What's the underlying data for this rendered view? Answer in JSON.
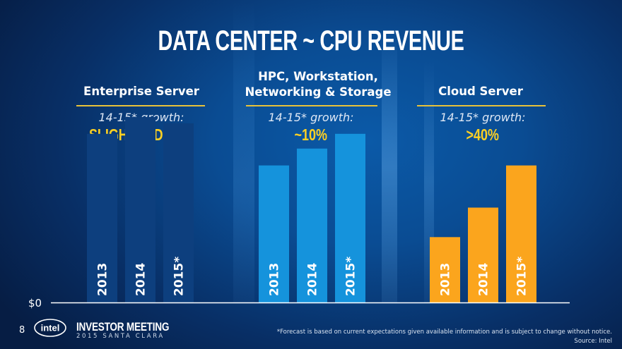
{
  "title": "DATA CENTER ~ CPU REVENUE",
  "growth_label": "14-15* growth:",
  "segments": [
    {
      "name": "Enterprise Server",
      "name_lines": [
        "Enterprise Server"
      ],
      "growth": "SLIGHTLY DOWN"
    },
    {
      "name": "HPC, Workstation, Networking & Storage",
      "name_lines": [
        "HPC, Workstation,",
        "Networking & Storage"
      ],
      "growth": "~10%"
    },
    {
      "name": "Cloud Server",
      "name_lines": [
        "Cloud Server"
      ],
      "growth": ">40%"
    }
  ],
  "colors": {
    "enterprise": "#0d3f7e",
    "hpc": "#1593dc",
    "cloud": "#fba51d",
    "accent": "#fdd023"
  },
  "chart_data": {
    "type": "bar",
    "title": "DATA CENTER ~ CPU REVENUE",
    "ylabel": "",
    "y_tick_label": "$0",
    "ylim": [
      0,
      100
    ],
    "units": "relative (no scale shown)",
    "series": [
      {
        "name": "Enterprise Server",
        "categories": [
          "2013",
          "2014",
          "2015*"
        ],
        "values": [
          80,
          88,
          85
        ]
      },
      {
        "name": "HPC, Workstation, Networking & Storage",
        "categories": [
          "2013",
          "2014",
          "2015*"
        ],
        "values": [
          65,
          73,
          80
        ]
      },
      {
        "name": "Cloud Server",
        "categories": [
          "2013",
          "2014",
          "2015*"
        ],
        "values": [
          31,
          45,
          65
        ]
      }
    ]
  },
  "footer": {
    "page_number": "8",
    "brand": "intel",
    "event_title": "INVESTOR MEETING",
    "event_subtitle": "2015 SANTA CLARA",
    "footnote": "*Forecast is based on current expectations given available information and is subject to change without notice.",
    "source": "Source: Intel"
  }
}
